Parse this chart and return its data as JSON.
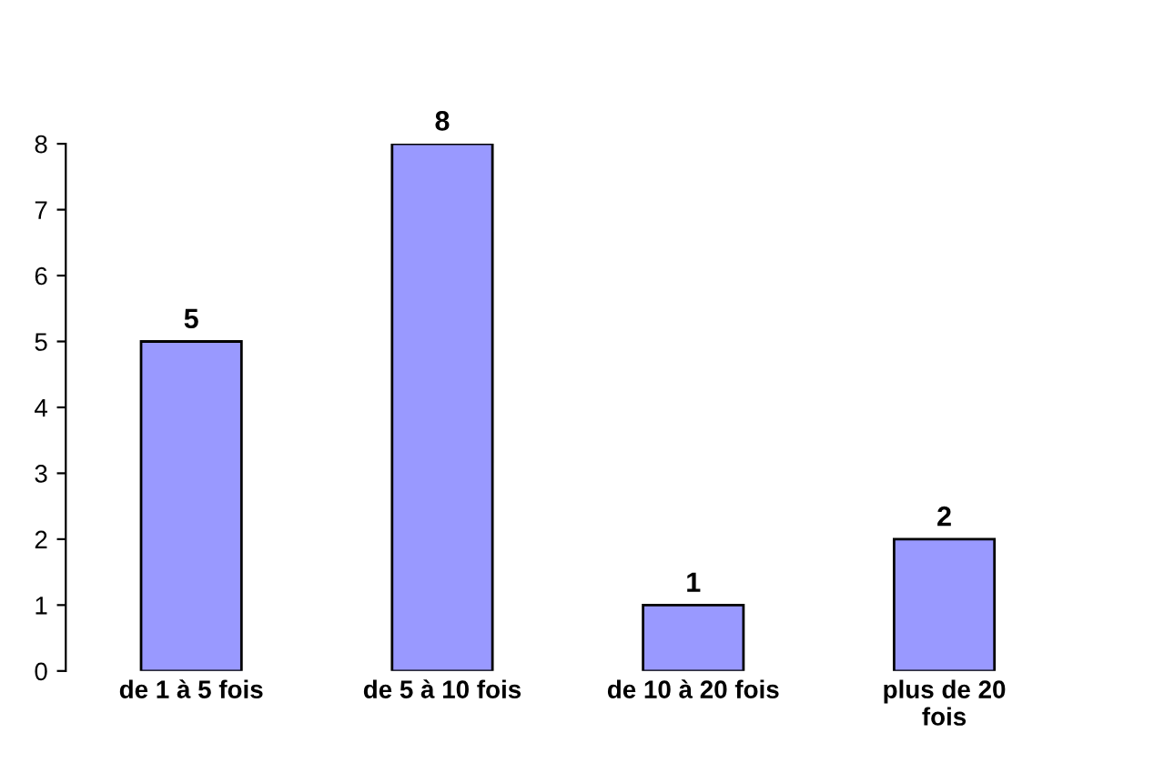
{
  "chart_data": {
    "type": "bar",
    "categories": [
      "de 1 à 5 fois",
      "de 5 à 10 fois",
      "de 10 à 20 fois",
      "plus de 20\nfois"
    ],
    "values": [
      5,
      8,
      1,
      2
    ],
    "color": "#9999ff",
    "ylim": [
      0,
      8
    ],
    "yticks": [
      0,
      1,
      2,
      3,
      4,
      5,
      6,
      7,
      8
    ],
    "grid": false,
    "data_labels": true
  }
}
